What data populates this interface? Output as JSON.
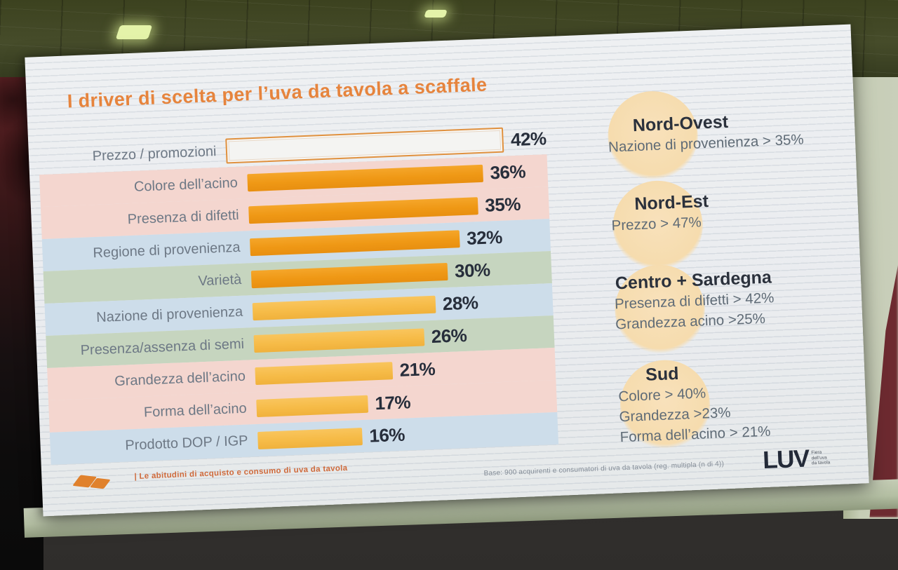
{
  "slide": {
    "title": "I driver di scelta per l’uva da tavola a scaffale",
    "footer": {
      "left_note": "|  Le abitudini di acquisto e consumo di uva da tavola",
      "source_note": "Base: 900 acquirenti e consumatori di uva da tavola (reg. multipla (n di 4))",
      "logo_word": "LUV",
      "logo_sub": "Fiera\ndell’uva\nda tavola"
    }
  },
  "chart_data": {
    "type": "bar",
    "orientation": "horizontal",
    "title": "I driver di scelta per l’uva da tavola a scaffale",
    "xlabel": "",
    "ylabel": "",
    "unit": "%",
    "xlim": [
      0,
      45
    ],
    "grid": false,
    "categories": [
      "Prezzo / promozioni",
      "Colore dell’acino",
      "Presenza di difetti",
      "Regione di provenienza",
      "Varietà",
      "Nazione di provenienza",
      "Presenza/assenza di semi",
      "Grandezza dell’acino",
      "Forma dell’acino",
      "Prodotto DOP / IGP"
    ],
    "values": [
      42,
      36,
      35,
      32,
      30,
      28,
      26,
      21,
      17,
      16
    ],
    "rows": [
      {
        "label": "Prezzo / promozioni",
        "value": 42,
        "display": "42%",
        "band": "none",
        "bar": "outline"
      },
      {
        "label": "Colore dell’acino",
        "value": 36,
        "display": "36%",
        "band": "pink",
        "bar": "dark"
      },
      {
        "label": "Presenza di difetti",
        "value": 35,
        "display": "35%",
        "band": "pink",
        "bar": "dark"
      },
      {
        "label": "Regione di provenienza",
        "value": 32,
        "display": "32%",
        "band": "blue",
        "bar": "dark"
      },
      {
        "label": "Varietà",
        "value": 30,
        "display": "30%",
        "band": "green",
        "bar": "dark"
      },
      {
        "label": "Nazione di provenienza",
        "value": 28,
        "display": "28%",
        "band": "blue",
        "bar": "light"
      },
      {
        "label": "Presenza/assenza di semi",
        "value": 26,
        "display": "26%",
        "band": "green",
        "bar": "light"
      },
      {
        "label": "Grandezza dell’acino",
        "value": 21,
        "display": "21%",
        "band": "pink",
        "bar": "light"
      },
      {
        "label": "Forma dell’acino",
        "value": 17,
        "display": "17%",
        "band": "pink",
        "bar": "light"
      },
      {
        "label": "Prodotto DOP / IGP",
        "value": 16,
        "display": "16%",
        "band": "blue",
        "bar": "light"
      }
    ],
    "annotations": [
      {
        "title": "Nord-Ovest",
        "lines": [
          "Nazione di provenienza > 35%"
        ]
      },
      {
        "title": "Nord-Est",
        "lines": [
          "Prezzo > 47%"
        ]
      },
      {
        "title": "Centro + Sardegna",
        "lines": [
          "Presenza di difetti > 42%",
          "Grandezza acino >25%"
        ]
      },
      {
        "title": "Sud",
        "lines": [
          "Colore > 40%",
          "Grandezza >23%",
          "Forma dell’acino > 21%"
        ]
      }
    ],
    "legend": null
  },
  "colors": {
    "title_accent": "#e6843d",
    "bar_primary": "#ef9815",
    "bar_secondary": "#f6bb47",
    "band_pink": "#f4d6cf",
    "band_blue": "#cdddea",
    "band_green": "#c6d5bf",
    "annotation_circle": "#f6dcae",
    "value_text": "#272e3b",
    "label_text": "#6d7885"
  }
}
